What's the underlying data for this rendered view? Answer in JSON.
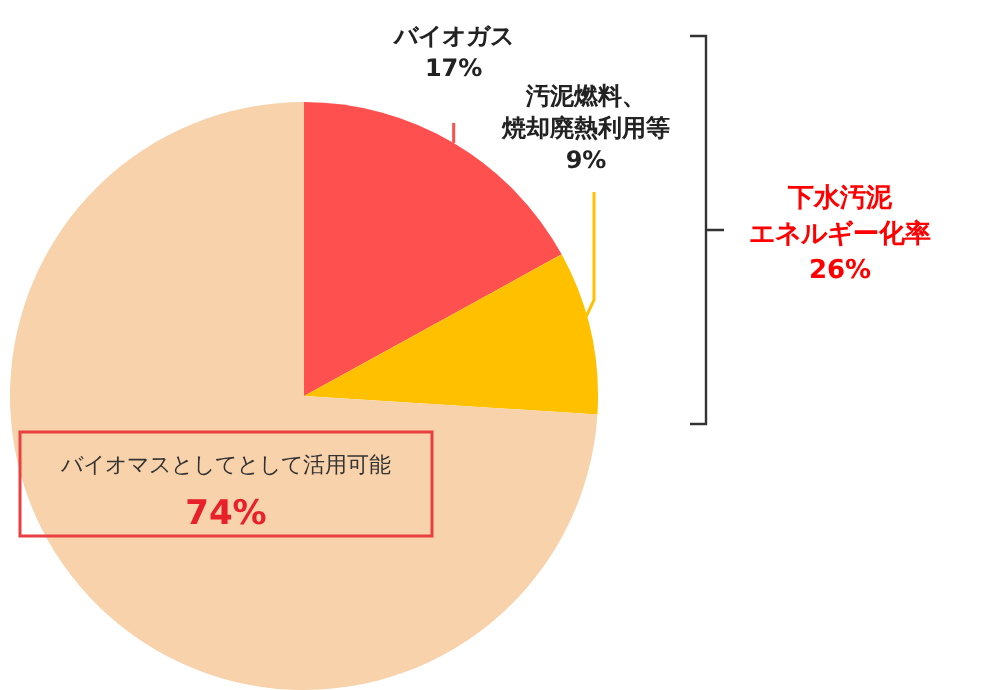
{
  "chart_data": {
    "type": "pie",
    "categories": [
      "バイオガス",
      "汚泥燃料、焼却廃熱利用等",
      "バイオマスとしてとして活用可能"
    ],
    "values": [
      17,
      9,
      74
    ],
    "value_labels": [
      "17%",
      "9%",
      "74%"
    ],
    "colors": [
      "#ff5050",
      "#ffc000",
      "#f8d2ab"
    ],
    "annotations": [
      "下水汚泥エネルギー化率",
      "26%"
    ]
  }
}
